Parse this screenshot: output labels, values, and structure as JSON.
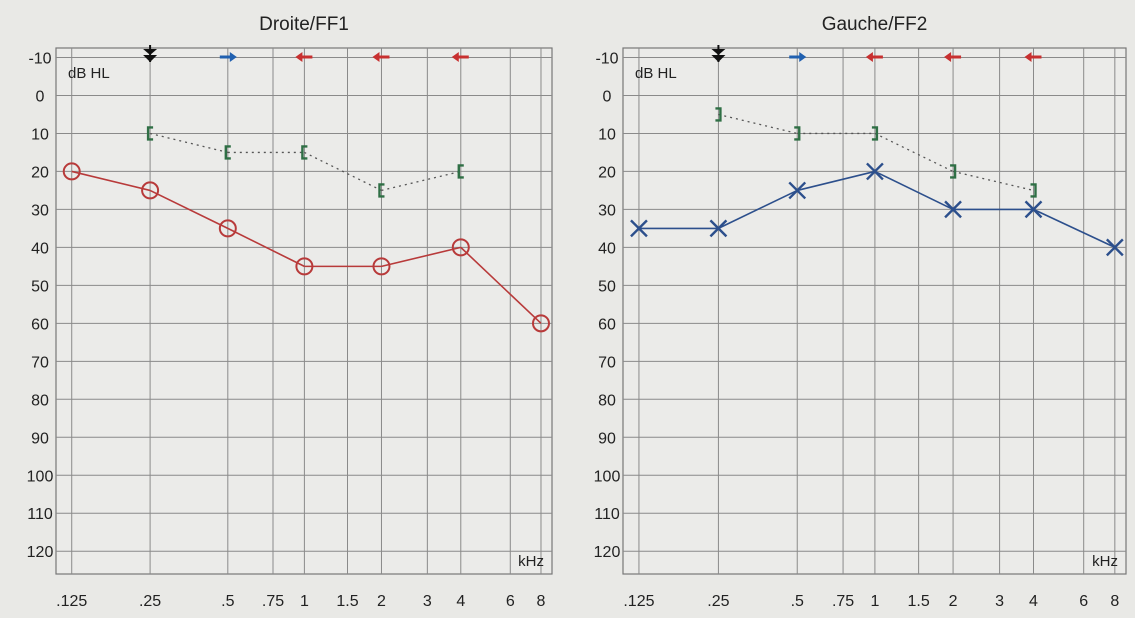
{
  "chart_data": [
    {
      "type": "line",
      "title": "Droite/FF1",
      "ylabel": "dB HL",
      "xlabel": "kHz",
      "y_ticks": [
        "-10",
        "0",
        "10",
        "20",
        "30",
        "40",
        "50",
        "60",
        "70",
        "80",
        "90",
        "100",
        "110",
        "120"
      ],
      "x_ticks": [
        ".125",
        ".25",
        ".5",
        ".75",
        "1",
        "1.5",
        "2",
        "3",
        "4",
        "6",
        "8"
      ],
      "x_values_khz": [
        0.125,
        0.25,
        0.5,
        0.75,
        1,
        1.5,
        2,
        3,
        4,
        6,
        8
      ],
      "ylim": [
        -10,
        120
      ],
      "grid": true,
      "colors": {
        "air": "#b83a3a",
        "bone": "#2f6f45",
        "arrow_black": "#111111",
        "arrow_blue": "#2060b0",
        "arrow_red": "#c83030"
      },
      "series": [
        {
          "marker": "circle",
          "line": "solid",
          "x": [
            0.125,
            0.25,
            0.5,
            1,
            2,
            4,
            8
          ],
          "y": [
            20,
            25,
            35,
            45,
            45,
            40,
            60
          ]
        },
        {
          "marker": "bracket-left",
          "line": "dotted",
          "x": [
            0.25,
            0.5,
            1,
            2,
            4
          ],
          "y": [
            10,
            15,
            15,
            25,
            20
          ]
        }
      ],
      "top_arrows": [
        {
          "x": 0.25,
          "symbol": "double-down-arrow",
          "color": "arrow_black"
        },
        {
          "x": 0.5,
          "symbol": "right-arrow",
          "color": "arrow_blue"
        },
        {
          "x": 1,
          "symbol": "left-arrow",
          "color": "arrow_red"
        },
        {
          "x": 2,
          "symbol": "left-arrow",
          "color": "arrow_red"
        },
        {
          "x": 4,
          "symbol": "left-arrow",
          "color": "arrow_red"
        }
      ]
    },
    {
      "type": "line",
      "title": "Gauche/FF2",
      "ylabel": "dB HL",
      "xlabel": "kHz",
      "y_ticks": [
        "-10",
        "0",
        "10",
        "20",
        "30",
        "40",
        "50",
        "60",
        "70",
        "80",
        "90",
        "100",
        "110",
        "120"
      ],
      "x_ticks": [
        ".125",
        ".25",
        ".5",
        ".75",
        "1",
        "1.5",
        "2",
        "3",
        "4",
        "6",
        "8"
      ],
      "x_values_khz": [
        0.125,
        0.25,
        0.5,
        0.75,
        1,
        1.5,
        2,
        3,
        4,
        6,
        8
      ],
      "ylim": [
        -10,
        120
      ],
      "grid": true,
      "colors": {
        "air": "#2c4f8c",
        "bone": "#2f6f45",
        "arrow_black": "#111111",
        "arrow_blue": "#2060b0",
        "arrow_red": "#c83030"
      },
      "series": [
        {
          "marker": "cross",
          "line": "solid",
          "x": [
            0.125,
            0.25,
            0.5,
            1,
            2,
            4,
            8
          ],
          "y": [
            35,
            35,
            25,
            20,
            30,
            30,
            40
          ]
        },
        {
          "marker": "bracket-right",
          "line": "dotted",
          "x": [
            0.25,
            0.5,
            1,
            2,
            4
          ],
          "y": [
            5,
            10,
            10,
            20,
            25
          ]
        }
      ],
      "top_arrows": [
        {
          "x": 0.25,
          "symbol": "double-down-arrow",
          "color": "arrow_black"
        },
        {
          "x": 0.5,
          "symbol": "right-arrow",
          "color": "arrow_blue"
        },
        {
          "x": 1,
          "symbol": "left-arrow",
          "color": "arrow_red"
        },
        {
          "x": 2,
          "symbol": "left-arrow",
          "color": "arrow_red"
        },
        {
          "x": 4,
          "symbol": "left-arrow",
          "color": "arrow_red"
        }
      ]
    }
  ]
}
